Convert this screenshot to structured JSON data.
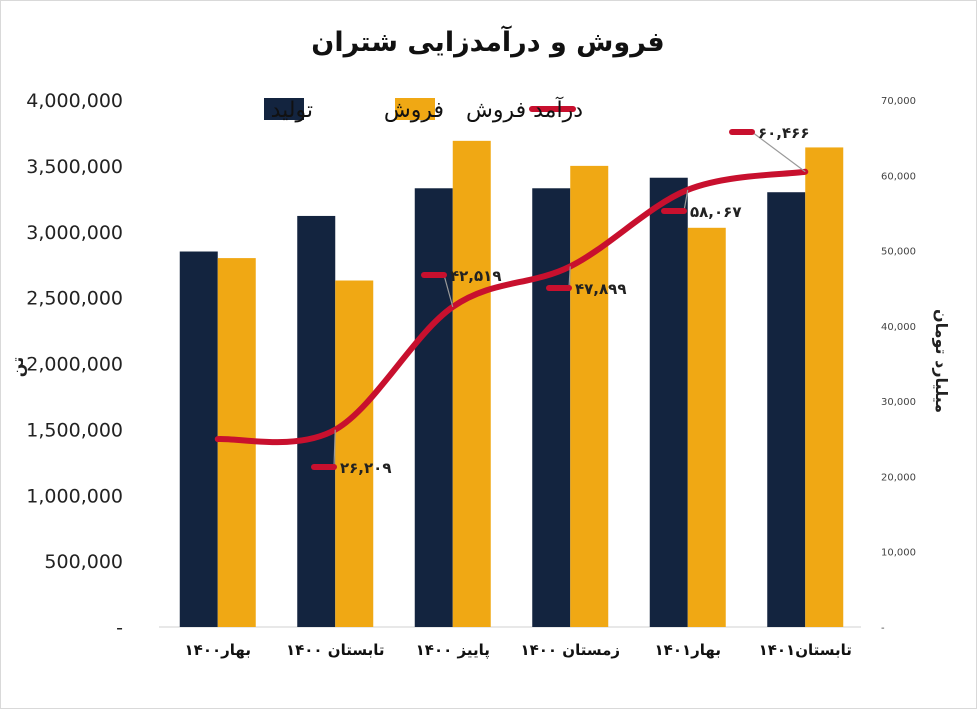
{
  "chart_data": {
    "type": "bar",
    "title": "فروش و درآمدزایی شتران",
    "categories": [
      "بهار۱۴۰۰",
      "تابستان ۱۴۰۰",
      "پاییز ۱۴۰۰",
      "زمستان ۱۴۰۰",
      "بهار۱۴۰۱",
      "تابستان۱۴۰۱"
    ],
    "series": [
      {
        "name": "تولید",
        "color": "#13243f",
        "axis": "left",
        "values": [
          2850000,
          3120000,
          3330000,
          3330000,
          3410000,
          3300000
        ]
      },
      {
        "name": "فروش",
        "color": "#f0a814",
        "axis": "left",
        "values": [
          2800000,
          2630000,
          3690000,
          3500000,
          3030000,
          3640000
        ]
      },
      {
        "name": "درآمد فروش",
        "color": "#c8102e",
        "axis": "right",
        "type": "line",
        "smooth": true,
        "values": [
          24962,
          26209,
          42519,
          47899,
          58067,
          60466
        ],
        "data_labels": [
          "",
          "۲۶,۲۰۹",
          "۴۲,۵۱۹",
          "۴۷,۸۹۹",
          "۵۸,۰۶۷",
          "۶۰,۴۶۶"
        ]
      }
    ],
    "ylabel": "تن",
    "ylabel_right": "میلیارد تومان",
    "ylim": [
      0,
      4000000
    ],
    "ylim_right": [
      0,
      70000
    ],
    "yticks_left": [
      "-",
      "500,000",
      "1,000,000",
      "1,500,000",
      "2,000,000",
      "2,500,000",
      "3,000,000",
      "3,500,000",
      "4,000,000"
    ],
    "yticks_right": [
      "-",
      "10,000",
      "20,000",
      "30,000",
      "40,000",
      "50,000",
      "60,000",
      "70,000"
    ],
    "legend_position": "top",
    "grid": false
  }
}
